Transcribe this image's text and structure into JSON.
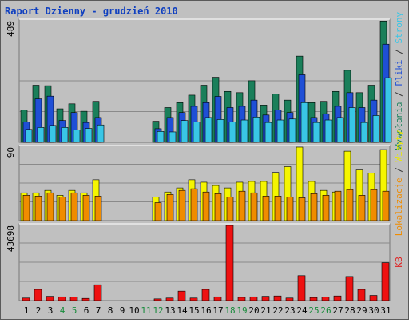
{
  "chart_data": [
    {
      "type": "bar",
      "title": "Raport Dzienny -  grudzień 2010",
      "panel": "top",
      "max_label": "489",
      "ylim": [
        0,
        489
      ],
      "side_label_parts": [
        {
          "text": "Wywołania",
          "color": "#1a7f5a"
        },
        {
          "text": " / ",
          "color": "#333333"
        },
        {
          "text": "Pliki",
          "color": "#1f4fd6"
        },
        {
          "text": " / ",
          "color": "#333333"
        },
        {
          "text": "Strony",
          "color": "#39c6e6"
        }
      ],
      "categories": [
        "1",
        "2",
        "3",
        "4",
        "5",
        "6",
        "7",
        "8",
        "9",
        "10",
        "11",
        "12",
        "13",
        "14",
        "15",
        "16",
        "17",
        "18",
        "19",
        "20",
        "21",
        "22",
        "23",
        "24",
        "25",
        "26",
        "27",
        "28",
        "29",
        "30",
        "31"
      ],
      "series": [
        {
          "name": "Wywołania",
          "color": "#1a7f5a",
          "values": [
            130,
            230,
            228,
            135,
            155,
            125,
            165,
            0,
            0,
            0,
            0,
            85,
            140,
            160,
            190,
            230,
            262,
            205,
            200,
            248,
            150,
            195,
            170,
            347,
            160,
            165,
            205,
            290,
            200,
            230,
            488
          ]
        },
        {
          "name": "Pliki",
          "color": "#1f4fd6",
          "values": [
            82,
            175,
            186,
            88,
            120,
            80,
            100,
            0,
            0,
            0,
            0,
            55,
            100,
            120,
            145,
            160,
            185,
            140,
            145,
            170,
            110,
            130,
            120,
            272,
            100,
            115,
            145,
            200,
            140,
            170,
            395
          ]
        },
        {
          "name": "Strony",
          "color": "#39c6e6",
          "values": [
            52,
            60,
            68,
            60,
            50,
            56,
            70,
            0,
            0,
            0,
            0,
            44,
            42,
            88,
            82,
            100,
            92,
            82,
            90,
            102,
            80,
            90,
            94,
            160,
            80,
            90,
            100,
            140,
            80,
            108,
            260
          ]
        }
      ]
    },
    {
      "type": "bar",
      "panel": "middle",
      "max_label": "90",
      "ylim": [
        0,
        90
      ],
      "side_label_parts": [
        {
          "text": "Lokalizacje",
          "color": "#f08c00"
        },
        {
          "text": " / ",
          "color": "#333333"
        },
        {
          "text": "Wizyty",
          "color": "#e8e800"
        }
      ],
      "categories": [
        "1",
        "2",
        "3",
        "4",
        "5",
        "6",
        "7",
        "8",
        "9",
        "10",
        "11",
        "12",
        "13",
        "14",
        "15",
        "16",
        "17",
        "18",
        "19",
        "20",
        "21",
        "22",
        "23",
        "24",
        "25",
        "26",
        "27",
        "28",
        "29",
        "30",
        "31"
      ],
      "series": [
        {
          "name": "Wizyty",
          "color": "#f5f500",
          "values": [
            34,
            34,
            37,
            31,
            37,
            34,
            50,
            0,
            0,
            0,
            0,
            29,
            35,
            40,
            50,
            47,
            43,
            40,
            47,
            48,
            48,
            59,
            66,
            90,
            48,
            37,
            35,
            85,
            62,
            58,
            87
          ]
        },
        {
          "name": "Lokalizacje",
          "color": "#f08c00",
          "values": [
            31,
            30,
            34,
            29,
            34,
            31,
            30,
            0,
            0,
            0,
            0,
            22,
            32,
            37,
            39,
            35,
            33,
            29,
            36,
            34,
            30,
            30,
            29,
            28,
            33,
            31,
            36,
            38,
            31,
            38,
            36
          ]
        }
      ]
    },
    {
      "type": "bar",
      "panel": "bottom",
      "max_label": "43698",
      "ylim": [
        0,
        43698
      ],
      "side_label_parts": [
        {
          "text": "KB",
          "color": "#e02020"
        }
      ],
      "categories": [
        "1",
        "2",
        "3",
        "4",
        "5",
        "6",
        "7",
        "8",
        "9",
        "10",
        "11",
        "12",
        "13",
        "14",
        "15",
        "16",
        "17",
        "18",
        "19",
        "20",
        "21",
        "22",
        "23",
        "24",
        "25",
        "26",
        "27",
        "28",
        "29",
        "30",
        "31"
      ],
      "series": [
        {
          "name": "KB",
          "color": "#ee1111",
          "values": [
            1500,
            6500,
            2500,
            2200,
            2000,
            1300,
            9200,
            0,
            0,
            0,
            0,
            1000,
            1500,
            5500,
            1500,
            6500,
            2200,
            43698,
            1900,
            2200,
            2500,
            2700,
            1500,
            14500,
            1800,
            2000,
            2700,
            14000,
            6500,
            3000,
            22000
          ]
        }
      ]
    }
  ],
  "x_axis": {
    "labels": [
      "1",
      "2",
      "3",
      "4",
      "5",
      "6",
      "7",
      "8",
      "9",
      "10",
      "11",
      "12",
      "13",
      "14",
      "15",
      "16",
      "17",
      "18",
      "19",
      "20",
      "21",
      "22",
      "23",
      "24",
      "25",
      "26",
      "27",
      "28",
      "29",
      "30",
      "31"
    ],
    "weekend_days": [
      "4",
      "5",
      "11",
      "12",
      "18",
      "19",
      "25",
      "26"
    ],
    "weekday_color": "#000000",
    "weekend_color": "#198c3c"
  },
  "colors": {
    "background": "#c0c0c0",
    "plot_background": "#c0c0c0",
    "title": "#1040c0",
    "gridline": "#8a8a8a"
  }
}
